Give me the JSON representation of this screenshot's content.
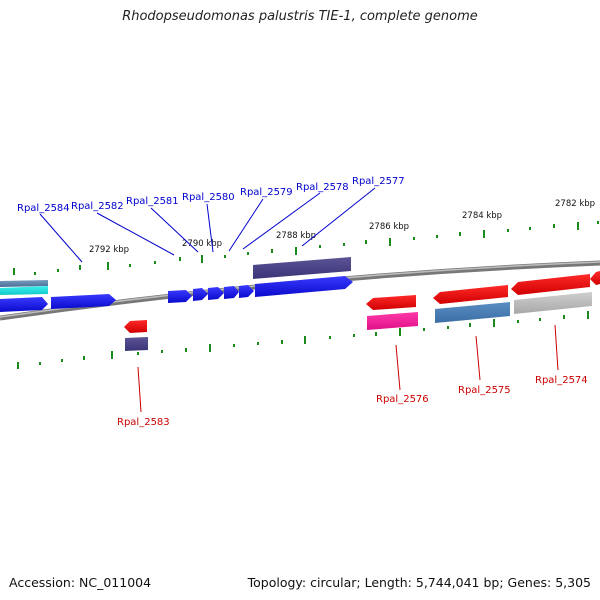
{
  "title": "Rhodopseudomonas palustris TIE-1, complete genome",
  "footer": {
    "accession": "Accession: NC_011004",
    "topology": "Topology: circular; Length: 5,744,041 bp; Genes: 5,305"
  },
  "colors": {
    "forward_gene": "#1515f0",
    "reverse_gene": "#f00000",
    "backbone": "#808080",
    "tick": "#1a8a1a",
    "label_top": "#0000cc",
    "label_bottom": "#cc0000"
  },
  "tick_labels": [
    "2792 kbp",
    "2790 kbp",
    "2788 kbp",
    "2786 kbp",
    "2784 kbp",
    "2782 kbp"
  ],
  "top_gene_labels": [
    "Rpal_2584",
    "Rpal_2582",
    "Rpal_2581",
    "Rpal_2580",
    "Rpal_2579",
    "Rpal_2578",
    "Rpal_2577"
  ],
  "bottom_gene_labels": [
    "Rpal_2583",
    "Rpal_2576",
    "Rpal_2575",
    "Rpal_2574"
  ]
}
